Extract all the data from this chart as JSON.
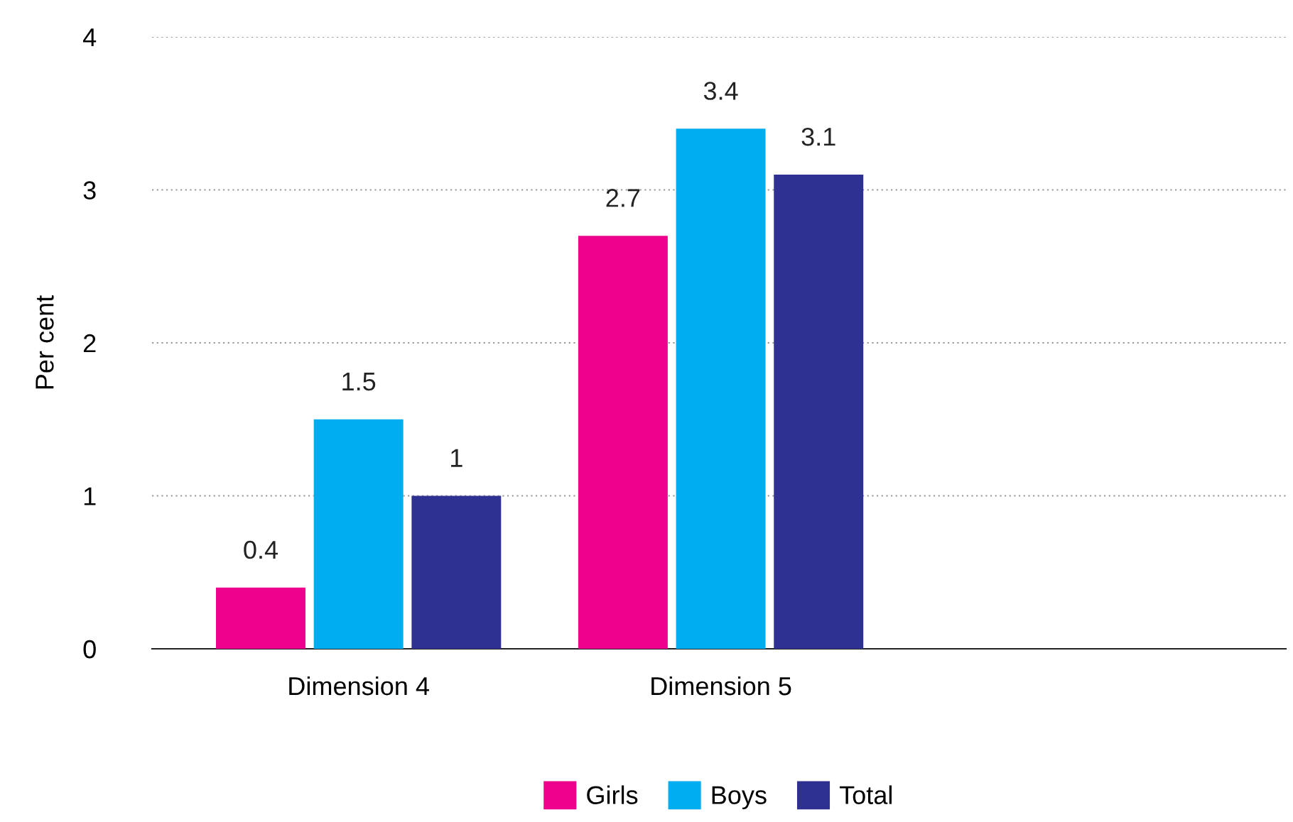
{
  "chart_data": {
    "type": "bar",
    "ylabel": "Per cent",
    "categories": [
      "Dimension 4",
      "Dimension 5"
    ],
    "series": [
      {
        "name": "Girls",
        "color": "#ec008c",
        "values": [
          0.4,
          2.7
        ]
      },
      {
        "name": "Boys",
        "color": "#00aeef",
        "values": [
          1.5,
          3.4
        ]
      },
      {
        "name": "Total",
        "color": "#2e3192",
        "values": [
          1,
          3.1
        ]
      }
    ],
    "ylim": [
      0,
      4
    ],
    "yticks": [
      0,
      1,
      2,
      3,
      4
    ],
    "grid": "y",
    "legend": "bottom",
    "data_labels": true
  }
}
